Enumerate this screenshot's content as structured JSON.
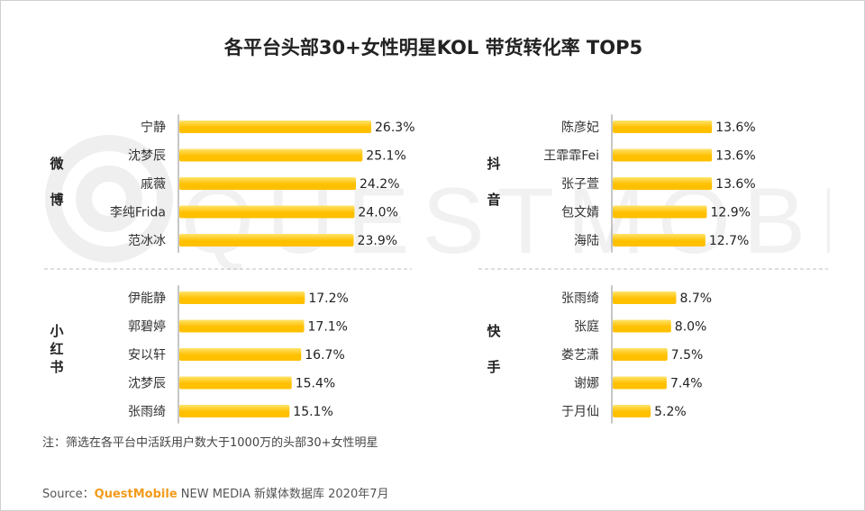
{
  "title": "各平台头部30+女性明星KOL 带货转化率 TOP5",
  "note": "注：筛选在各平台中活跃用户数大于1000万的头部30+女性明星",
  "source": {
    "label": "Source：",
    "brand": "QuestMobile",
    "rest": " NEW MEDIA 新媒体数据库 2020年7月"
  },
  "watermark": "QUESTMOBILE",
  "colors": {
    "bar": "#FFC000",
    "bar_light": "#FFE36A",
    "text": "#333333",
    "accent": "#F29B1B"
  },
  "chart_data": [
    {
      "type": "bar",
      "platform": "微博",
      "categories": [
        "宁静",
        "沈梦辰",
        "戚薇",
        "李纯Frida",
        "范冰冰"
      ],
      "values": [
        26.3,
        25.1,
        24.2,
        24.0,
        23.9
      ],
      "labels": [
        "26.3%",
        "25.1%",
        "24.2%",
        "24.0%",
        "23.9%"
      ]
    },
    {
      "type": "bar",
      "platform": "小红书",
      "categories": [
        "伊能静",
        "郭碧婷",
        "安以轩",
        "沈梦辰",
        "张雨绮"
      ],
      "values": [
        17.2,
        17.1,
        16.7,
        15.4,
        15.1
      ],
      "labels": [
        "17.2%",
        "17.1%",
        "16.7%",
        "15.4%",
        "15.1%"
      ]
    },
    {
      "type": "bar",
      "platform": "抖音",
      "categories": [
        "陈彦妃",
        "王霏霏Fei",
        "张子萱",
        "包文婧",
        "海陆"
      ],
      "values": [
        13.6,
        13.6,
        13.6,
        12.9,
        12.7
      ],
      "labels": [
        "13.6%",
        "13.6%",
        "13.6%",
        "12.9%",
        "12.7%"
      ]
    },
    {
      "type": "bar",
      "platform": "快手",
      "categories": [
        "张雨绮",
        "张庭",
        "娄艺潇",
        "谢娜",
        "于月仙"
      ],
      "values": [
        8.7,
        8.0,
        7.5,
        7.4,
        5.2
      ],
      "labels": [
        "8.7%",
        "8.0%",
        "7.5%",
        "7.4%",
        "5.2%"
      ]
    }
  ]
}
